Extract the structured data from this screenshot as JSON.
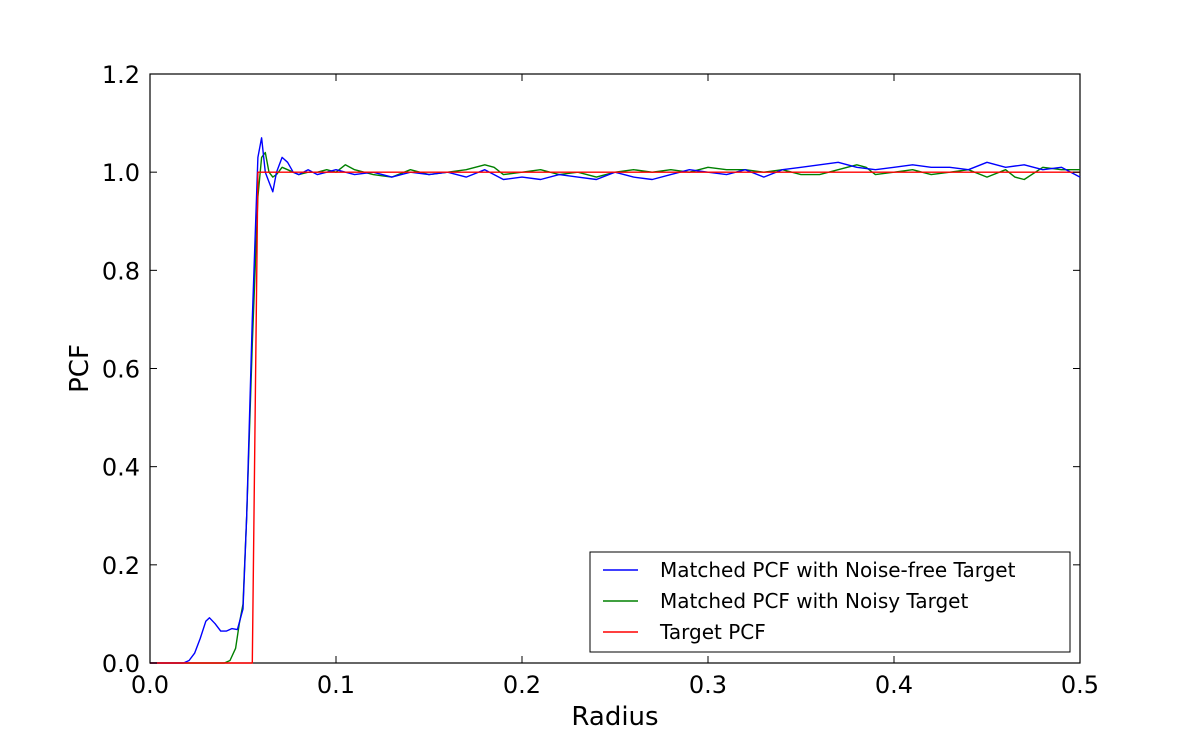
{
  "chart_data": {
    "type": "line",
    "xlabel": "Radius",
    "ylabel": "PCF",
    "xlim": [
      0.0,
      0.5
    ],
    "ylim": [
      0.0,
      1.2
    ],
    "xticks": [
      "0.0",
      "0.1",
      "0.2",
      "0.3",
      "0.4",
      "0.5"
    ],
    "yticks": [
      "0.0",
      "0.2",
      "0.4",
      "0.6",
      "0.8",
      "1.0",
      "1.2"
    ],
    "grid": false,
    "legend_position": "lower-right",
    "series": [
      {
        "name": "Matched PCF with Noise-free Target",
        "color": "#0000ff",
        "x": [
          0.0,
          0.018,
          0.021,
          0.024,
          0.027,
          0.03,
          0.032,
          0.035,
          0.038,
          0.041,
          0.044,
          0.047,
          0.05,
          0.052,
          0.055,
          0.058,
          0.06,
          0.062,
          0.064,
          0.066,
          0.068,
          0.071,
          0.074,
          0.077,
          0.08,
          0.085,
          0.09,
          0.095,
          0.1,
          0.11,
          0.12,
          0.13,
          0.14,
          0.15,
          0.16,
          0.17,
          0.18,
          0.19,
          0.2,
          0.21,
          0.22,
          0.23,
          0.24,
          0.25,
          0.26,
          0.27,
          0.28,
          0.29,
          0.3,
          0.31,
          0.32,
          0.33,
          0.34,
          0.35,
          0.36,
          0.37,
          0.38,
          0.39,
          0.4,
          0.41,
          0.42,
          0.43,
          0.44,
          0.45,
          0.46,
          0.47,
          0.48,
          0.49,
          0.5
        ],
        "y": [
          0.0,
          0.0,
          0.005,
          0.02,
          0.05,
          0.085,
          0.092,
          0.08,
          0.065,
          0.065,
          0.07,
          0.068,
          0.11,
          0.3,
          0.7,
          1.03,
          1.07,
          1.0,
          0.98,
          0.96,
          1.0,
          1.03,
          1.02,
          1.0,
          0.995,
          1.005,
          0.995,
          1.0,
          1.005,
          0.995,
          1.0,
          0.99,
          1.0,
          0.995,
          1.0,
          0.99,
          1.005,
          0.985,
          0.99,
          0.985,
          0.995,
          0.99,
          0.985,
          1.0,
          0.99,
          0.985,
          0.995,
          1.005,
          1.0,
          0.995,
          1.005,
          0.99,
          1.005,
          1.01,
          1.015,
          1.02,
          1.01,
          1.005,
          1.01,
          1.015,
          1.01,
          1.01,
          1.005,
          1.02,
          1.01,
          1.015,
          1.005,
          1.01,
          0.99
        ]
      },
      {
        "name": "Matched PCF with Noisy Target",
        "color": "#008000",
        "x": [
          0.0,
          0.04,
          0.043,
          0.046,
          0.048,
          0.05,
          0.052,
          0.055,
          0.058,
          0.06,
          0.062,
          0.064,
          0.066,
          0.068,
          0.071,
          0.074,
          0.077,
          0.08,
          0.085,
          0.09,
          0.095,
          0.1,
          0.105,
          0.11,
          0.12,
          0.13,
          0.14,
          0.15,
          0.16,
          0.17,
          0.18,
          0.185,
          0.19,
          0.2,
          0.21,
          0.22,
          0.23,
          0.24,
          0.25,
          0.26,
          0.27,
          0.28,
          0.29,
          0.3,
          0.31,
          0.32,
          0.33,
          0.34,
          0.35,
          0.36,
          0.37,
          0.38,
          0.385,
          0.39,
          0.4,
          0.41,
          0.42,
          0.43,
          0.44,
          0.45,
          0.46,
          0.465,
          0.47,
          0.48,
          0.49,
          0.5
        ],
        "y": [
          0.0,
          0.0,
          0.005,
          0.03,
          0.08,
          0.12,
          0.3,
          0.65,
          0.95,
          1.03,
          1.04,
          1.0,
          0.99,
          0.995,
          1.01,
          1.005,
          1.0,
          0.995,
          1.0,
          1.0,
          1.005,
          1.0,
          1.015,
          1.005,
          0.995,
          0.99,
          1.005,
          0.995,
          1.0,
          1.005,
          1.015,
          1.01,
          0.995,
          1.0,
          1.005,
          0.995,
          1.0,
          0.99,
          1.0,
          1.005,
          1.0,
          1.005,
          1.0,
          1.01,
          1.005,
          1.005,
          1.0,
          1.005,
          0.995,
          0.995,
          1.005,
          1.015,
          1.01,
          0.995,
          1.0,
          1.005,
          0.995,
          1.0,
          1.005,
          0.99,
          1.005,
          0.99,
          0.985,
          1.01,
          1.005,
          1.005
        ]
      },
      {
        "name": "Target PCF",
        "color": "#ff0000",
        "x": [
          0.0,
          0.055,
          0.058,
          0.5
        ],
        "y": [
          0.0,
          0.0,
          1.0,
          1.0
        ]
      }
    ]
  }
}
